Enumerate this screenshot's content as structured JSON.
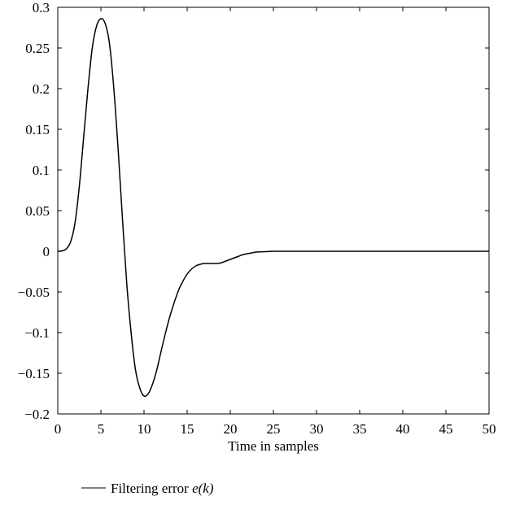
{
  "chart_data": {
    "type": "line",
    "title": "",
    "xlabel": "Time in samples",
    "ylabel": "",
    "xlim": [
      0,
      50
    ],
    "ylim": [
      -0.2,
      0.3
    ],
    "grid": false,
    "legend_placement": "below",
    "x_ticks": [
      "0",
      "5",
      "10",
      "15",
      "20",
      "25",
      "30",
      "35",
      "40",
      "45",
      "50"
    ],
    "y_ticks": [
      "0.3",
      "0.25",
      "0.2",
      "0.15",
      "0.1",
      "0.05",
      "0",
      "−0.05",
      "−0.1",
      "−0.15",
      "−0.2"
    ],
    "x_tick_values": [
      0,
      5,
      10,
      15,
      20,
      25,
      30,
      35,
      40,
      45,
      50
    ],
    "y_tick_values": [
      0.3,
      0.25,
      0.2,
      0.15,
      0.1,
      0.05,
      0,
      -0.05,
      -0.1,
      -0.15,
      -0.2
    ],
    "series": [
      {
        "legend_prefix": "Filtering error ",
        "legend_math": "e(k)",
        "color": "#000000",
        "x": [
          0,
          0.5,
          1,
          1.5,
          2,
          2.5,
          3,
          3.5,
          4,
          4.5,
          5,
          5.5,
          6,
          6.5,
          7,
          7.5,
          8,
          8.5,
          9,
          9.5,
          10,
          10.5,
          11,
          11.5,
          12,
          12.5,
          13,
          13.5,
          14,
          14.5,
          15,
          15.5,
          16,
          16.5,
          17,
          17.5,
          18,
          18.5,
          19,
          19.5,
          20,
          20.5,
          21,
          21.5,
          22,
          22.5,
          23,
          24,
          25,
          26,
          27,
          28,
          29,
          30,
          32,
          35,
          40,
          45,
          50
        ],
        "y": [
          0,
          0.0005,
          0.003,
          0.012,
          0.035,
          0.08,
          0.14,
          0.2,
          0.25,
          0.277,
          0.286,
          0.28,
          0.255,
          0.2,
          0.125,
          0.04,
          -0.04,
          -0.1,
          -0.145,
          -0.168,
          -0.178,
          -0.175,
          -0.163,
          -0.145,
          -0.122,
          -0.1,
          -0.08,
          -0.063,
          -0.048,
          -0.037,
          -0.028,
          -0.022,
          -0.018,
          -0.016,
          -0.015,
          -0.015,
          -0.015,
          -0.015,
          -0.014,
          -0.012,
          -0.01,
          -0.008,
          -0.006,
          -0.004,
          -0.003,
          -0.002,
          -0.001,
          -0.0005,
          0,
          0,
          0,
          0,
          0,
          0,
          0,
          0,
          0,
          0,
          0
        ]
      }
    ]
  }
}
